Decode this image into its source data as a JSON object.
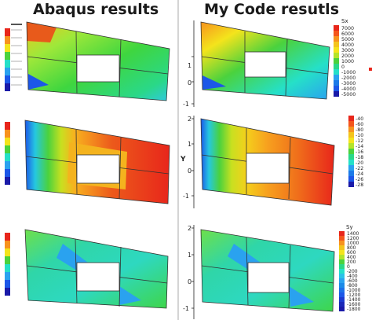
{
  "headings": {
    "left": "Abaqus results",
    "right": "My Code resutls"
  },
  "panels": {
    "sx": {
      "var_label": "Sx",
      "ticks": [
        "7000",
        "6000",
        "5000",
        "4000",
        "3000",
        "2000",
        "1000",
        "0",
        "-1000",
        "-2000",
        "-3000",
        "-4000",
        "-5000"
      ],
      "yaxis": [
        "1",
        "0",
        "-1"
      ]
    },
    "sy_partial": {
      "var_label": "",
      "ticks": [
        "-40",
        "-60",
        "-80",
        "-10",
        "-12",
        "-14",
        "-16",
        "-18",
        "-20",
        "-22",
        "-24",
        "-26",
        "-28"
      ],
      "yaxis_label": "Y",
      "yaxis": [
        "2",
        "1",
        "0",
        "-1"
      ]
    },
    "sxy": {
      "var_label": "Sy",
      "ticks": [
        "1400",
        "1200",
        "1000",
        "800",
        "600",
        "400",
        "200",
        "0",
        "-200",
        "-400",
        "-600",
        "-800",
        "-1000",
        "-1200",
        "-1400",
        "-1600",
        "-1800"
      ],
      "yaxis": [
        "2",
        "1",
        "0",
        "-1"
      ]
    }
  },
  "colors": {
    "red": "#e8261b",
    "orange": "#f7931e",
    "yellow": "#f4e41c",
    "green": "#4bd23d",
    "cyan": "#25e0c8",
    "blue": "#1c57e8",
    "navy": "#1a1aa8",
    "divider": "#d4d4d4"
  }
}
